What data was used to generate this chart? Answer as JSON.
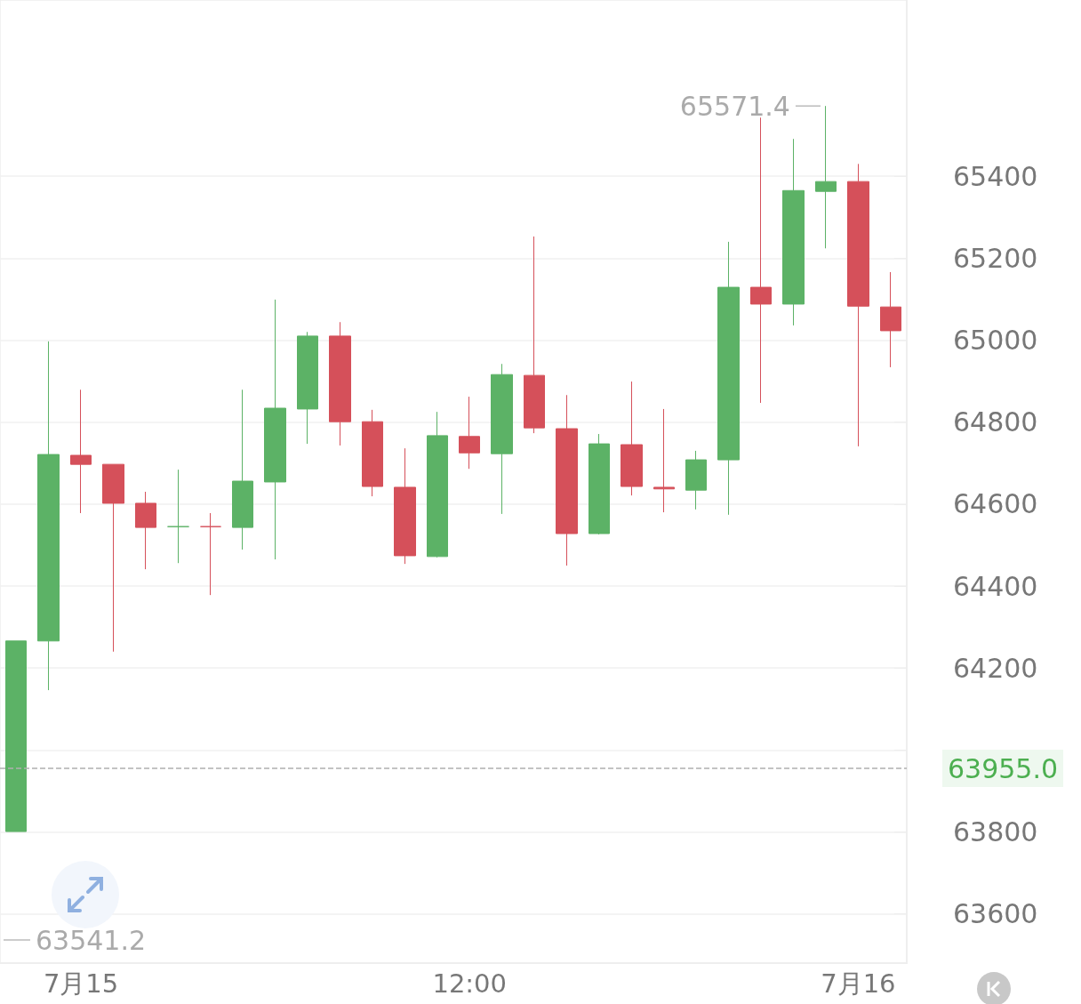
{
  "chart_data": {
    "type": "candlestick",
    "categories": [
      null,
      null,
      "7月15",
      null,
      null,
      null,
      null,
      null,
      null,
      null,
      null,
      null,
      null,
      null,
      "12:00",
      null,
      null,
      null,
      null,
      null,
      null,
      null,
      null,
      null,
      null,
      null,
      "7月16",
      null
    ],
    "ohlc": [
      [
        63801,
        64266,
        63801,
        64266
      ],
      [
        64266,
        64997,
        64146,
        64721
      ],
      [
        64719,
        64879,
        64578,
        64697
      ],
      [
        64697,
        64697,
        64240,
        64602
      ],
      [
        64602,
        64630,
        64441,
        64543
      ],
      [
        64545,
        64684,
        64456,
        64545
      ],
      [
        64545,
        64578,
        64378,
        64545
      ],
      [
        64543,
        64879,
        64489,
        64656
      ],
      [
        64654,
        65099,
        64465,
        64834
      ],
      [
        64832,
        65020,
        64747,
        65010
      ],
      [
        65010,
        65044,
        64743,
        64801
      ],
      [
        64801,
        64830,
        64619,
        64643
      ],
      [
        64641,
        64736,
        64454,
        64474
      ],
      [
        64472,
        64825,
        64470,
        64767
      ],
      [
        64765,
        64862,
        64686,
        64725
      ],
      [
        64723,
        64942,
        64576,
        64916
      ],
      [
        64914,
        65253,
        64773,
        64786
      ],
      [
        64784,
        64866,
        64450,
        64528
      ],
      [
        64528,
        64771,
        64526,
        64747
      ],
      [
        64745,
        64899,
        64621,
        64643
      ],
      [
        64641,
        64832,
        64580,
        64637
      ],
      [
        64634,
        64730,
        64587,
        64708
      ],
      [
        64708,
        65240,
        64574,
        65129
      ],
      [
        65129,
        65543,
        64847,
        65088
      ],
      [
        65088,
        65491,
        65036,
        65365
      ],
      [
        65363,
        65571.4,
        65224,
        65387
      ],
      [
        65387,
        65430,
        64741,
        65083
      ],
      [
        65081,
        65166,
        64934,
        65023
      ]
    ],
    "colors": [
      "#5cb266",
      "#5cb266",
      "#d5505a",
      "#d5505a",
      "#d5505a",
      "#5cb266",
      "#d5505a",
      "#5cb266",
      "#5cb266",
      "#5cb266",
      "#d5505a",
      "#d5505a",
      "#d5505a",
      "#5cb266",
      "#d5505a",
      "#5cb266",
      "#d5505a",
      "#d5505a",
      "#5cb266",
      "#d5505a",
      "#d5505a",
      "#5cb266",
      "#5cb266",
      "#d5505a",
      "#5cb266",
      "#5cb266",
      "#d5505a",
      "#d5505a"
    ],
    "ylim": [
      63480,
      65830
    ],
    "yticks": [
      63600,
      63800,
      {
        "value": 64000,
        "label": null
      },
      64200,
      64400,
      64600,
      64800,
      65000,
      65200,
      65400
    ],
    "grid": "y",
    "ref_lines": [
      {
        "axis": "y",
        "value": 63955.0,
        "label": "63955.0",
        "color": "#b0b0b0",
        "line_style": "dashed"
      }
    ],
    "annotations": [
      "65571.4",
      "63541.2"
    ]
  }
}
